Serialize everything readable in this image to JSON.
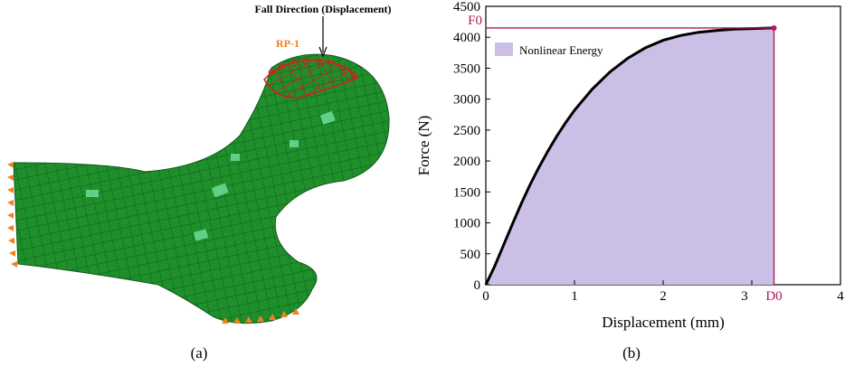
{
  "panel_a": {
    "annotation": "Fall Direction (Displacement)",
    "rp_label": "RP-1",
    "caption": "(a)",
    "colors": {
      "mesh": "#1f8f2c",
      "mesh_dark": "#0f5a18",
      "highlight": "#6fe3a0",
      "boundary": "#f0821e",
      "load": "#e01818"
    }
  },
  "panel_b": {
    "caption": "(b)"
  },
  "chart_data": {
    "type": "line",
    "xlabel": "Displacement (mm)",
    "ylabel": "Force (N)",
    "xlim": [
      0,
      4
    ],
    "ylim": [
      0,
      4500
    ],
    "xticks": [
      0,
      1,
      2,
      3,
      4
    ],
    "yticks": [
      0,
      500,
      1000,
      1500,
      2000,
      2500,
      3000,
      3500,
      4000,
      4500
    ],
    "series": [
      {
        "x": [
          0,
          0.1,
          0.2,
          0.3,
          0.4,
          0.5,
          0.6,
          0.7,
          0.8,
          0.9,
          1.0,
          1.2,
          1.4,
          1.6,
          1.8,
          2.0,
          2.2,
          2.4,
          2.6,
          2.8,
          3.0,
          3.2,
          3.25
        ],
        "y": [
          0,
          300,
          640,
          980,
          1310,
          1620,
          1900,
          2160,
          2400,
          2620,
          2820,
          3160,
          3440,
          3660,
          3830,
          3950,
          4030,
          4080,
          4110,
          4130,
          4140,
          4150,
          4150
        ],
        "color": "#000000"
      }
    ],
    "area": {
      "label": "Nonlinear Energy",
      "color": "#cbbfe6"
    },
    "reference": {
      "F0_label": "F0",
      "D0_label": "D0",
      "F0": 4150,
      "D0": 3.25,
      "color": "#b0185a"
    },
    "legend": "top-left",
    "grid": false
  }
}
